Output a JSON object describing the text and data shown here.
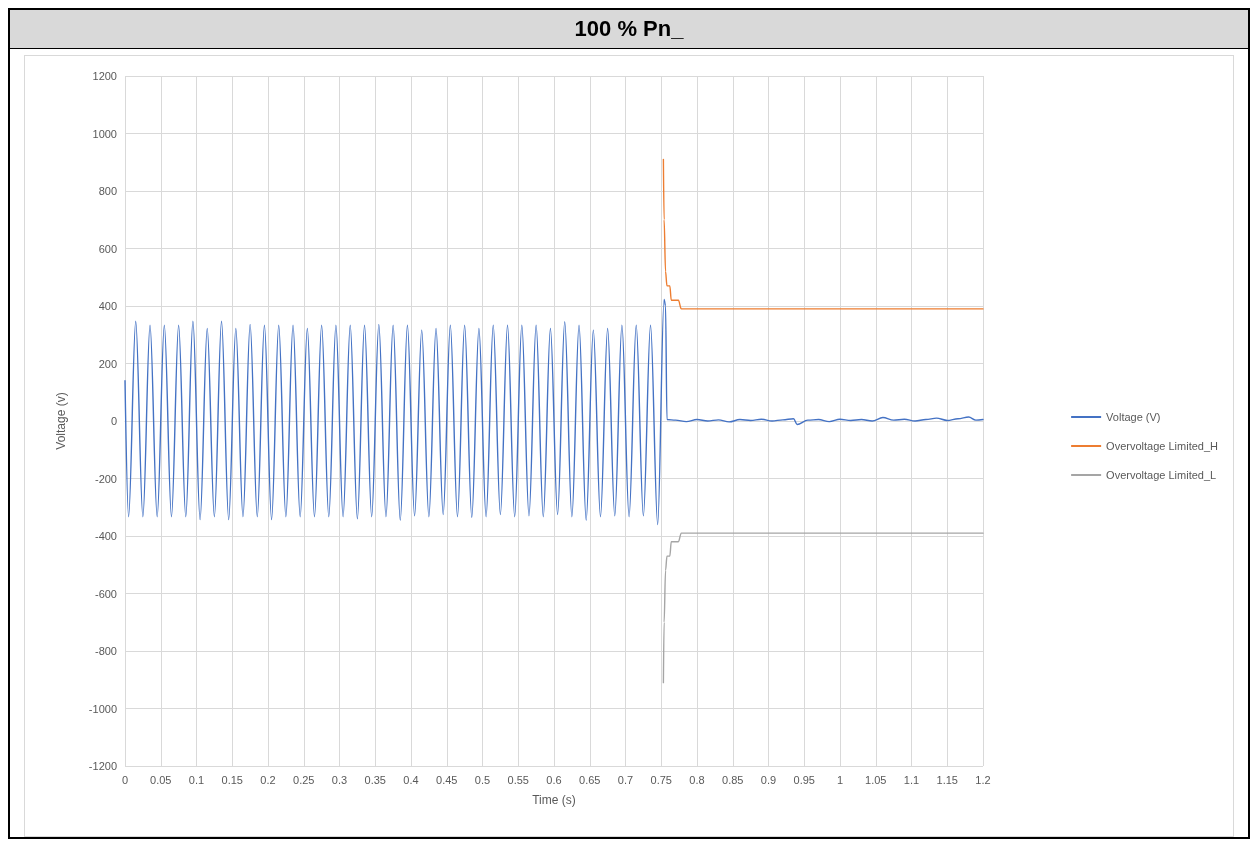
{
  "chart_data": {
    "type": "line",
    "title": "100 % Pn_",
    "xlabel": "Time (s)",
    "ylabel": "Voltage (v)",
    "xlim": [
      0,
      1.2
    ],
    "xticks": [
      0,
      0.05,
      0.1,
      0.15,
      0.2,
      0.25,
      0.3,
      0.35,
      0.4,
      0.45,
      0.5,
      0.55,
      0.6,
      0.65,
      0.7,
      0.75,
      0.8,
      0.85,
      0.9,
      0.95,
      1,
      1.05,
      1.1,
      1.15,
      1.2
    ],
    "ylim": [
      -1200,
      1200
    ],
    "yticks": [
      -1200,
      -1000,
      -800,
      -600,
      -400,
      -200,
      0,
      200,
      400,
      600,
      800,
      1000,
      1200
    ],
    "grid": true,
    "legend": "right",
    "marker": "none",
    "line_style": "solid",
    "series": [
      {
        "name": "Voltage (V)",
        "color": "#4472c4",
        "x": [
          0,
          0.005,
          0.015,
          0.025,
          0.035,
          0.045,
          0.055,
          0.065,
          0.075,
          0.085,
          0.095,
          0.105,
          0.115,
          0.125,
          0.135,
          0.145,
          0.155,
          0.165,
          0.175,
          0.185,
          0.195,
          0.205,
          0.215,
          0.225,
          0.235,
          0.245,
          0.255,
          0.265,
          0.275,
          0.285,
          0.295,
          0.305,
          0.315,
          0.325,
          0.335,
          0.345,
          0.355,
          0.365,
          0.375,
          0.385,
          0.395,
          0.405,
          0.415,
          0.425,
          0.435,
          0.445,
          0.455,
          0.465,
          0.475,
          0.485,
          0.495,
          0.505,
          0.515,
          0.525,
          0.535,
          0.545,
          0.555,
          0.565,
          0.575,
          0.585,
          0.595,
          0.605,
          0.615,
          0.625,
          0.635,
          0.645,
          0.655,
          0.665,
          0.675,
          0.685,
          0.695,
          0.705,
          0.715,
          0.725,
          0.735,
          0.745,
          0.754,
          0.756,
          0.758,
          0.77,
          0.785,
          0.8,
          0.815,
          0.83,
          0.845,
          0.86,
          0.875,
          0.89,
          0.905,
          0.92,
          0.935,
          0.94,
          0.955,
          0.97,
          0.985,
          1.0,
          1.015,
          1.03,
          1.045,
          1.06,
          1.075,
          1.09,
          1.105,
          1.12,
          1.135,
          1.15,
          1.165,
          1.18,
          1.19,
          1.2
        ],
        "values": [
          140,
          -333,
          347,
          -333,
          333,
          -333,
          333,
          -333,
          333,
          -333,
          347,
          -343,
          322,
          -333,
          347,
          -343,
          322,
          -333,
          336,
          -333,
          333,
          -343,
          333,
          -333,
          333,
          -333,
          322,
          -333,
          333,
          -333,
          333,
          -333,
          333,
          -340,
          333,
          -333,
          336,
          -333,
          333,
          -345,
          333,
          -330,
          316,
          -333,
          322,
          -325,
          333,
          -333,
          333,
          -335,
          322,
          -333,
          333,
          -325,
          333,
          -333,
          333,
          -330,
          333,
          -333,
          322,
          -325,
          345,
          -333,
          333,
          -345,
          316,
          -333,
          322,
          -330,
          333,
          -333,
          333,
          -330,
          333,
          -360,
          423,
          400,
          5,
          3,
          -2,
          5,
          0,
          4,
          -3,
          5,
          2,
          6,
          0,
          4,
          8,
          -12,
          3,
          5,
          -2,
          6,
          2,
          5,
          0,
          12,
          3,
          6,
          0,
          5,
          10,
          2,
          8,
          14,
          3,
          5
        ]
      },
      {
        "name": "Overvoltage Limited_H",
        "color": "#ed7d31",
        "x": [
          0.753,
          0.754,
          0.756,
          0.758,
          0.762,
          0.764,
          0.774,
          0.778,
          1.2
        ],
        "values": [
          910,
          700,
          520,
          470,
          470,
          420,
          420,
          390,
          390
        ]
      },
      {
        "name": "Overvoltage Limited_L",
        "color": "#a5a5a5",
        "x": [
          0.753,
          0.754,
          0.756,
          0.758,
          0.762,
          0.764,
          0.774,
          0.778,
          1.2
        ],
        "values": [
          -910,
          -700,
          -520,
          -470,
          -470,
          -420,
          -420,
          -390,
          -390
        ]
      }
    ]
  }
}
